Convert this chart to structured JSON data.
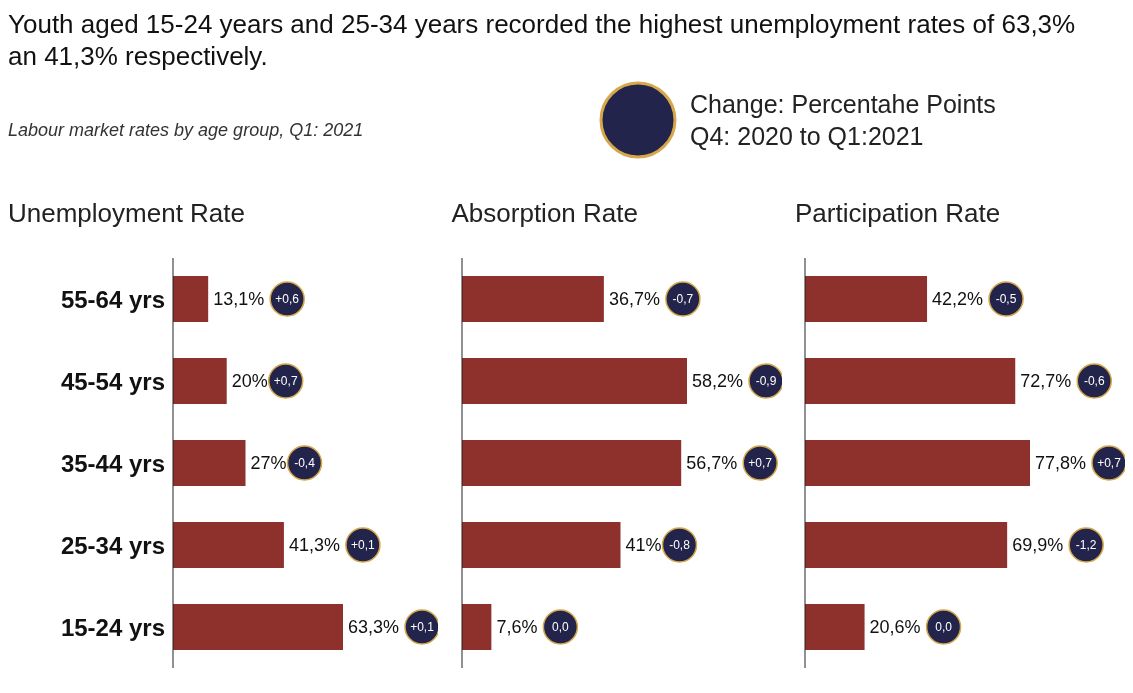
{
  "chart_data": [
    {
      "type": "other",
      "title": "Youth aged 15-24 years and 25-34 years recorded the highest unemployment rates of 63,3% an 41,3% respectively.",
      "subtitle": "Labour market rates by age group, Q1: 2021",
      "annotations": [
        "Change: Percentahe Points",
        "Q4: 2020 to Q1:2021"
      ]
    },
    {
      "type": "bar",
      "orientation": "horizontal",
      "title": "Unemployment Rate",
      "categories": [
        "55-64 yrs",
        "45-54 yrs",
        "35-44 yrs",
        "25-34 yrs",
        "15-24 yrs"
      ],
      "values": [
        13.1,
        20,
        27,
        41.3,
        63.3
      ],
      "color": "#8e312d",
      "value_labels": [
        "13,1%",
        "20%",
        "27%",
        "41,3%",
        "63,3%"
      ],
      "tick_labels": "y",
      "annotations": [
        "+0,6",
        "+0,7",
        "-0,4",
        "+0,1",
        "+0,1"
      ]
    },
    {
      "type": "bar",
      "orientation": "horizontal",
      "title": "Absorption Rate",
      "categories": [
        null,
        null,
        null,
        null,
        null
      ],
      "values": [
        36.7,
        58.2,
        56.7,
        41,
        7.6
      ],
      "color": "#8e312d",
      "value_labels": [
        "36,7%",
        "58,2%",
        "56,7%",
        "41%",
        "7,6%"
      ],
      "tick_labels": false,
      "annotations": [
        "-0,7",
        "-0,9",
        "+0,7",
        "-0,8",
        "0,0"
      ]
    },
    {
      "type": "bar",
      "orientation": "horizontal",
      "title": "Participation Rate",
      "categories": [
        null,
        null,
        null,
        null,
        null
      ],
      "values": [
        42.2,
        72.7,
        77.8,
        69.9,
        20.6
      ],
      "color": "#8e312d",
      "value_labels": [
        "42,2%",
        "72,7%",
        "77,8%",
        "69,9%",
        "20,6%"
      ],
      "tick_labels": false,
      "annotations": [
        "-0,5",
        "-0,6",
        "+0,7",
        "-1,2",
        "0,0"
      ]
    }
  ]
}
